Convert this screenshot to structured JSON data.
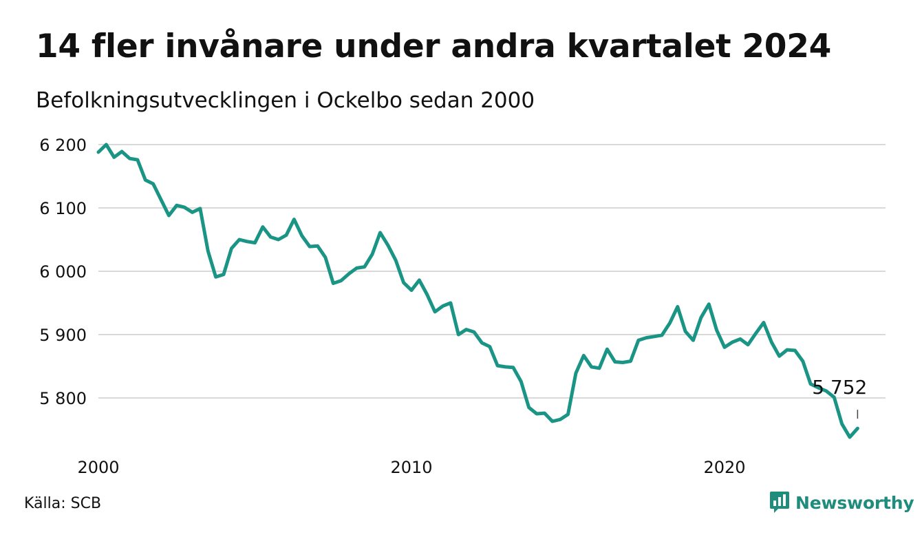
{
  "title": "14 fler invånare under andra kvartalet 2024",
  "subtitle": "Befolkningsutvecklingen i Ockelbo sedan 2000",
  "source": "Källa: SCB",
  "brand": {
    "name": "Newsworthy",
    "icon": "newsworthy-chart-logo-icon"
  },
  "colors": {
    "line": "#1a9484",
    "grid": "#d9d9d9",
    "brand": "#1f8c7c"
  },
  "chart_data": {
    "type": "line",
    "title": "",
    "xlabel": "",
    "ylabel": "",
    "xlim": [
      2000,
      2024.25
    ],
    "ylim": [
      5735,
      6205
    ],
    "x_ticks": [
      2000,
      2010,
      2020
    ],
    "x_tick_labels": [
      "2000",
      "2010",
      "2020"
    ],
    "y_ticks": [
      5800,
      5900,
      6000,
      6100,
      6200
    ],
    "y_tick_labels": [
      "5 800",
      "5 900",
      "6 000",
      "6 100",
      "6 200"
    ],
    "grid": "horizontal",
    "end_label": "5 752",
    "series": [
      {
        "x_start": 2000.0,
        "x_step": 0.25,
        "values": [
          6188,
          6200,
          6180,
          6189,
          6178,
          6176,
          6144,
          6138,
          6113,
          6088,
          6104,
          6101,
          6093,
          6099,
          6032,
          5991,
          5995,
          6036,
          6050,
          6047,
          6045,
          6070,
          6054,
          6050,
          6057,
          6082,
          6056,
          6039,
          6040,
          6022,
          5981,
          5985,
          5996,
          6005,
          6007,
          6027,
          6061,
          6041,
          6017,
          5982,
          5970,
          5986,
          5963,
          5936,
          5945,
          5950,
          5900,
          5908,
          5904,
          5887,
          5881,
          5851,
          5849,
          5848,
          5826,
          5785,
          5775,
          5776,
          5763,
          5766,
          5774,
          5839,
          5867,
          5849,
          5847,
          5877,
          5857,
          5856,
          5858,
          5891,
          5895,
          5897,
          5899,
          5918,
          5944,
          5905,
          5891,
          5927,
          5948,
          5907,
          5880,
          5888,
          5893,
          5884,
          5902,
          5919,
          5888,
          5866,
          5876,
          5875,
          5858,
          5822,
          5816,
          5811,
          5801,
          5759,
          5738,
          5752
        ]
      }
    ]
  }
}
